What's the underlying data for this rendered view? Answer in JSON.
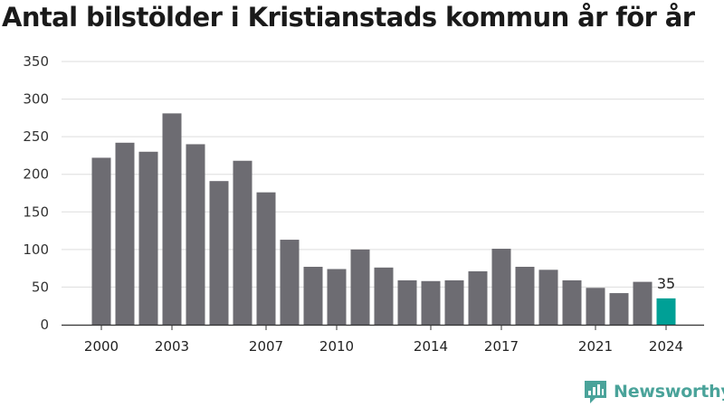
{
  "title": "Antal bilstölder i Kristianstads kommun år för år",
  "brand": {
    "name": "Newsworthy",
    "logo_icon": "newsworthy-bar-chart-icon"
  },
  "colors": {
    "bar": "#6d6c72",
    "highlight": "#00a096",
    "grid": "#dddddd",
    "axis": "#333333",
    "brand": "#4aa39a"
  },
  "chart_data": {
    "type": "bar",
    "title": "Antal bilstölder i Kristianstads kommun år för år",
    "xlabel": "",
    "ylabel": "",
    "categories": [
      "2000",
      "2001",
      "2002",
      "2003",
      "2004",
      "2005",
      "2006",
      "2007",
      "2008",
      "2009",
      "2010",
      "2011",
      "2012",
      "2013",
      "2014",
      "2015",
      "2016",
      "2017",
      "2018",
      "2019",
      "2020",
      "2021",
      "2022",
      "2023",
      "2024"
    ],
    "values": [
      222,
      242,
      230,
      281,
      240,
      191,
      218,
      176,
      113,
      77,
      74,
      100,
      76,
      59,
      58,
      59,
      71,
      101,
      77,
      73,
      59,
      49,
      42,
      57,
      35
    ],
    "x_tick_labels": [
      "2000",
      "2003",
      "2007",
      "2010",
      "2014",
      "2017",
      "2021",
      "2024"
    ],
    "y_ticks": [
      0,
      50,
      100,
      150,
      200,
      250,
      300,
      350
    ],
    "ylim": [
      0,
      350
    ],
    "grid": true,
    "highlight_category": "2024",
    "annotations": [
      {
        "category": "2024",
        "text": "35"
      }
    ]
  }
}
